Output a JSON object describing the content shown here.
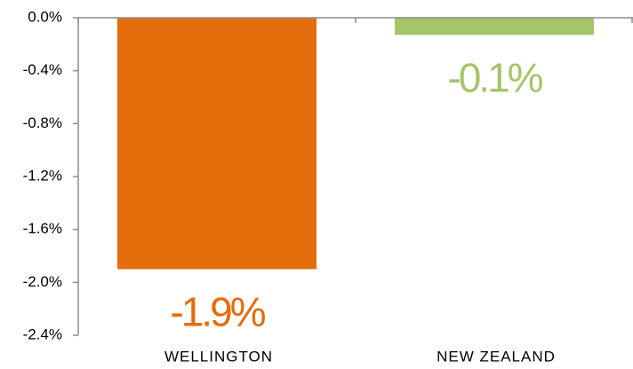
{
  "chart_data": {
    "type": "bar",
    "categories": [
      "WELLINGTON",
      "NEW ZEALAND"
    ],
    "values": [
      -1.9,
      -0.13
    ],
    "value_labels": [
      "-1.9%",
      "-0.1%"
    ],
    "colors": [
      "#e46c0a",
      "#a6c46a"
    ],
    "ylim": [
      -2.4,
      0
    ],
    "yticks": [
      {
        "value": 0,
        "label": "0.0%"
      },
      {
        "value": -0.4,
        "label": "-0.4%"
      },
      {
        "value": -0.8,
        "label": "-0.8%"
      },
      {
        "value": -1.2,
        "label": "-1.2%"
      },
      {
        "value": -1.6,
        "label": "-1.6%"
      },
      {
        "value": -2.0,
        "label": "-2.0%"
      },
      {
        "value": -2.4,
        "label": "-2.4%"
      }
    ],
    "grid": false
  }
}
